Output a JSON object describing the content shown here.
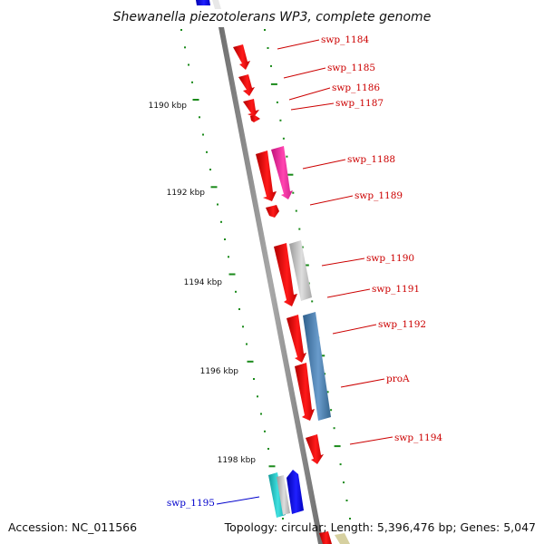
{
  "title": "Shewanella piezotolerans WP3, complete genome",
  "footer": {
    "accession": "Accession: NC_011566",
    "summary": "Topology: circular; Length: 5,396,476 bp; Genes: 5,047"
  },
  "colors": {
    "backbone": "#8a8a8a",
    "tick": "#1a8a1a",
    "label_red": "#cc0000",
    "label_blue": "#0000cc",
    "gene_red": "#ff0000",
    "gene_magenta": "#ff33aa",
    "gene_gray": "#c0c0c0",
    "gene_steelblue": "#4a7fb0",
    "gene_blue": "#0000ff",
    "gene_cyan": "#22c4c4",
    "gene_khaki": "#d6d0a0"
  },
  "ticks": [
    {
      "label": "1190 kbp"
    },
    {
      "label": "1192 kbp"
    },
    {
      "label": "1194 kbp"
    },
    {
      "label": "1196 kbp"
    },
    {
      "label": "1198 kbp"
    }
  ],
  "gene_labels": [
    {
      "name": "swp_1184",
      "color": "red"
    },
    {
      "name": "swp_1185",
      "color": "red"
    },
    {
      "name": "swp_1186",
      "color": "red"
    },
    {
      "name": "swp_1187",
      "color": "red"
    },
    {
      "name": "swp_1188",
      "color": "red"
    },
    {
      "name": "swp_1189",
      "color": "red"
    },
    {
      "name": "swp_1190",
      "color": "red"
    },
    {
      "name": "swp_1191",
      "color": "red"
    },
    {
      "name": "swp_1192",
      "color": "red"
    },
    {
      "name": "proA",
      "color": "red"
    },
    {
      "name": "swp_1194",
      "color": "red"
    },
    {
      "name": "swp_1195",
      "color": "blue"
    }
  ]
}
